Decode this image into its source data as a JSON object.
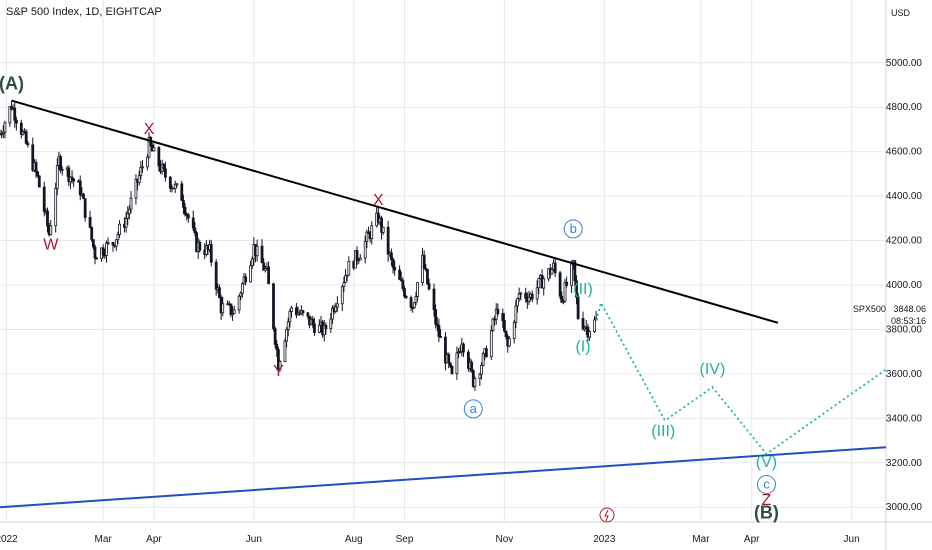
{
  "header": {
    "title": "S&P 500 Index, 1D, EIGHTCAP"
  },
  "currency": "USD",
  "price_tag": {
    "symbol": "SPX500",
    "price": "3848.06",
    "countdown": "08:53:16"
  },
  "colors": {
    "up": "#131722",
    "down": "#131722",
    "trendline": "#000000",
    "support": "#1f4fc0",
    "wave_red": "#a31a2e",
    "wave_blue": "#3b7fd0",
    "wave_teal": "#22b39b",
    "wave_dark": "#2f4f44",
    "grid": "#e7e9ef"
  },
  "chart_data": {
    "type": "candlestick",
    "title": "S&P 500 Index, 1D, EIGHTCAP",
    "ylabel": "USD",
    "ylim": [
      2920,
      5170
    ],
    "x_range": [
      "2021-12-28",
      "2023-06-22"
    ],
    "y_ticks": [
      3000,
      3200,
      3400,
      3600,
      3800,
      4000,
      4200,
      4400,
      4600,
      4800,
      5000
    ],
    "y_tick_labels": [
      "3000.00",
      "3200.00",
      "3400.00",
      "3600.00",
      "3800.00",
      "4000.00",
      "4200.00",
      "4400.00",
      "4600.00",
      "4800.00",
      "5000.00"
    ],
    "x_ticks": [
      {
        "date": "2022-01-01",
        "label": "2022"
      },
      {
        "date": "2022-03-01",
        "label": "Mar"
      },
      {
        "date": "2022-04-01",
        "label": "Apr"
      },
      {
        "date": "2022-06-01",
        "label": "Jun"
      },
      {
        "date": "2022-08-01",
        "label": "Aug"
      },
      {
        "date": "2022-09-01",
        "label": "Sep"
      },
      {
        "date": "2022-11-01",
        "label": "Nov"
      },
      {
        "date": "2023-01-01",
        "label": "2023"
      },
      {
        "date": "2023-03-01",
        "label": "Mar"
      },
      {
        "date": "2023-04-01",
        "label": "Apr"
      },
      {
        "date": "2023-06-01",
        "label": "Jun"
      }
    ],
    "price_path": [
      [
        "2021-12-28",
        4680
      ],
      [
        "2022-01-04",
        4810
      ],
      [
        "2022-01-10",
        4700
      ],
      [
        "2022-01-20",
        4480
      ],
      [
        "2022-01-27",
        4230
      ],
      [
        "2022-02-02",
        4560
      ],
      [
        "2022-02-15",
        4430
      ],
      [
        "2022-02-24",
        4140
      ],
      [
        "2022-03-07",
        4190
      ],
      [
        "2022-03-15",
        4300
      ],
      [
        "2022-03-29",
        4630
      ],
      [
        "2022-04-07",
        4500
      ],
      [
        "2022-04-18",
        4400
      ],
      [
        "2022-04-27",
        4180
      ],
      [
        "2022-05-05",
        4150
      ],
      [
        "2022-05-12",
        3900
      ],
      [
        "2022-05-20",
        3880
      ],
      [
        "2022-06-01",
        4170
      ],
      [
        "2022-06-09",
        4050
      ],
      [
        "2022-06-16",
        3650
      ],
      [
        "2022-06-24",
        3900
      ],
      [
        "2022-07-06",
        3830
      ],
      [
        "2022-07-14",
        3790
      ],
      [
        "2022-07-28",
        4070
      ],
      [
        "2022-08-05",
        4150
      ],
      [
        "2022-08-16",
        4305
      ],
      [
        "2022-08-26",
        4050
      ],
      [
        "2022-09-06",
        3910
      ],
      [
        "2022-09-12",
        4110
      ],
      [
        "2022-09-21",
        3800
      ],
      [
        "2022-09-30",
        3580
      ],
      [
        "2022-10-06",
        3760
      ],
      [
        "2022-10-13",
        3570
      ],
      [
        "2022-10-20",
        3680
      ],
      [
        "2022-10-28",
        3900
      ],
      [
        "2022-11-03",
        3720
      ],
      [
        "2022-11-10",
        3960
      ],
      [
        "2022-11-17",
        3950
      ],
      [
        "2022-11-25",
        4030
      ],
      [
        "2022-12-01",
        4080
      ],
      [
        "2022-12-06",
        3940
      ],
      [
        "2022-12-13",
        4080
      ],
      [
        "2022-12-16",
        3860
      ],
      [
        "2022-12-22",
        3800
      ],
      [
        "2022-12-28",
        3848
      ]
    ],
    "trendlines": [
      {
        "name": "resistance",
        "from": [
          "2022-01-04",
          4830
        ],
        "to": [
          "2023-04-17",
          3830
        ]
      },
      {
        "name": "support",
        "from": [
          "2021-12-28",
          3000
        ],
        "to": [
          "2023-06-22",
          3270
        ]
      }
    ],
    "projection": [
      [
        "2022-12-27",
        3840
      ],
      [
        "2022-12-30",
        3920
      ],
      [
        "2023-02-07",
        3390
      ],
      [
        "2023-03-08",
        3540
      ],
      [
        "2023-04-10",
        3240
      ],
      [
        "2023-06-22",
        3620
      ]
    ],
    "annotations": [
      {
        "text": "(A)",
        "date": "2022-01-04",
        "value": 4880,
        "color": "wave_dark",
        "style": "bold"
      },
      {
        "text": "W",
        "date": "2022-01-28",
        "value": 4160,
        "color": "wave_red"
      },
      {
        "text": "X",
        "date": "2022-03-29",
        "value": 4680,
        "color": "wave_red"
      },
      {
        "text": "Y",
        "date": "2022-06-16",
        "value": 3590,
        "color": "wave_red"
      },
      {
        "text": "X",
        "date": "2022-08-16",
        "value": 4360,
        "color": "wave_red"
      },
      {
        "text": "a",
        "date": "2022-10-13",
        "value": 3420,
        "color": "wave_blue",
        "style": "circle"
      },
      {
        "text": "b",
        "date": "2022-12-13",
        "value": 4230,
        "color": "wave_blue",
        "style": "circle"
      },
      {
        "text": "(II)",
        "date": "2022-12-19",
        "value": 3960,
        "color": "wave_teal"
      },
      {
        "text": "(I)",
        "date": "2022-12-19",
        "value": 3700,
        "color": "wave_teal"
      },
      {
        "text": "(III)",
        "date": "2023-02-06",
        "value": 3320,
        "color": "wave_teal"
      },
      {
        "text": "(IV)",
        "date": "2023-03-08",
        "value": 3600,
        "color": "wave_teal"
      },
      {
        "text": "(V)",
        "date": "2023-04-10",
        "value": 3180,
        "color": "wave_teal"
      },
      {
        "text": "c",
        "date": "2023-04-10",
        "value": 3080,
        "color": "wave_blue",
        "style": "circle"
      },
      {
        "text": "Z",
        "date": "2023-04-10",
        "value": 3010,
        "color": "wave_red"
      },
      {
        "text": "(B)",
        "date": "2023-04-10",
        "value": 2950,
        "color": "wave_dark",
        "style": "bold"
      }
    ]
  }
}
